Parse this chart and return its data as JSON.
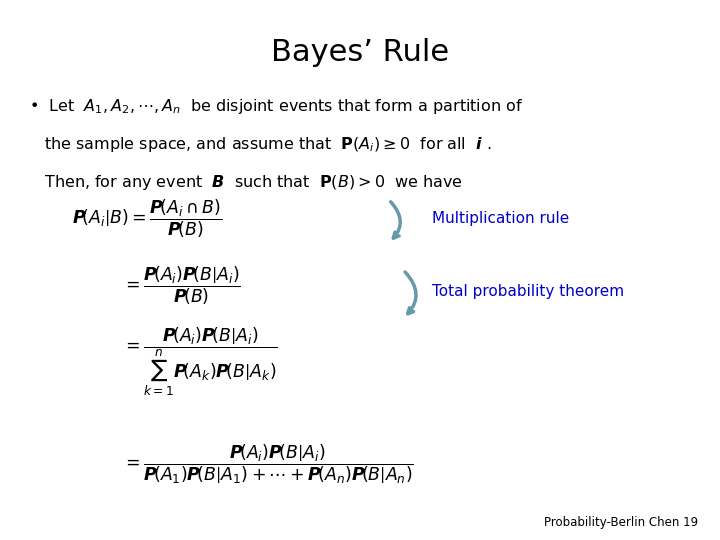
{
  "title": "Bayes’ Rule",
  "background_color": "#ffffff",
  "title_fontsize": 22,
  "title_color": "#000000",
  "text_color": "#000000",
  "blue_color": "#0000cc",
  "arrow_color": "#6699aa",
  "footer": "Probability-Berlin Chen 19",
  "bullet_text_line1": "•  Let  $A_1, A_2, \\cdots, A_n$  be disjoint events that form a partition of",
  "bullet_text_line2": "   the sample space, and assume that  $\\mathbf{P}(A_i) \\geq 0$  for all  $\\boldsymbol{i}$ .",
  "bullet_text_line3": "   Then, for any event  $\\boldsymbol{B}$  such that  $\\mathbf{P}(B) > 0$  we have",
  "eq1_lhs": "$\\boldsymbol{P}\\!\\left(A_i\\middle|B\\right) = \\dfrac{\\boldsymbol{P}\\!\\left(A_i \\cap B\\right)}{\\boldsymbol{P}\\!\\left(B\\right)}$",
  "eq2": "$= \\dfrac{\\boldsymbol{P}\\!\\left(A_i\\right)\\boldsymbol{P}\\!\\left(B\\middle|A_i\\right)}{\\boldsymbol{P}\\!\\left(B\\right)}$",
  "eq3": "$= \\dfrac{\\boldsymbol{P}\\!\\left(A_i\\right)\\boldsymbol{P}\\!\\left(B\\middle|A_i\\right)}{\\sum_{k=1}^{n} \\boldsymbol{P}\\!\\left(A_k\\right)\\boldsymbol{P}\\!\\left(B\\middle|A_k\\right)}$",
  "eq4": "$= \\dfrac{\\boldsymbol{P}\\!\\left(A_i\\right)\\boldsymbol{P}\\!\\left(B\\middle|A_i\\right)}{\\boldsymbol{P}\\!\\left(A_1\\right)\\boldsymbol{P}\\!\\left(B\\middle|A_1\\right) + \\cdots + \\boldsymbol{P}\\!\\left(A_n\\right)\\boldsymbol{P}\\!\\left(B\\middle|A_n\\right)}$",
  "label1": "Multiplication rule",
  "label2": "Total probability theorem"
}
